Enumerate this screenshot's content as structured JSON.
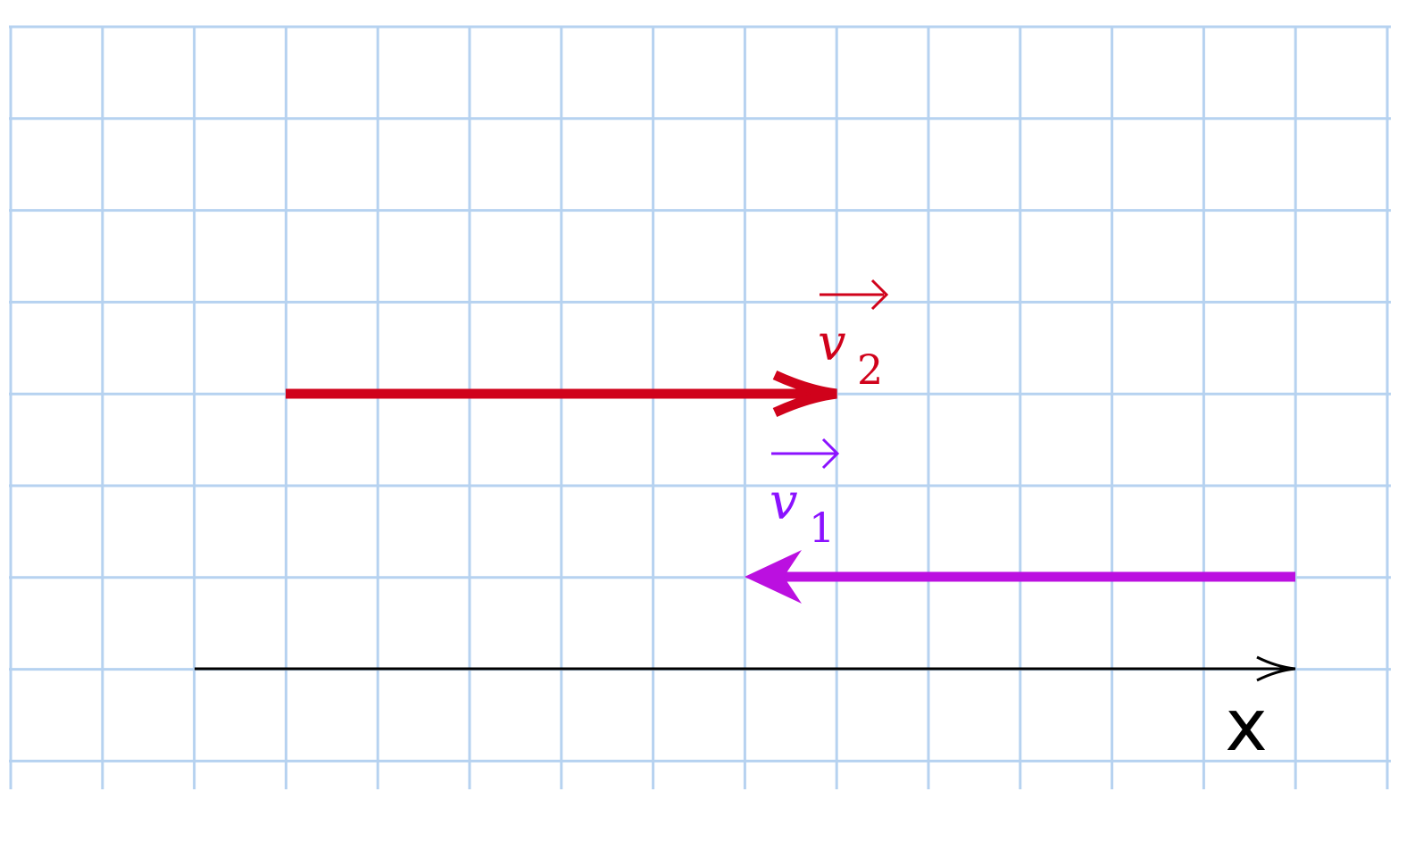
{
  "colors": {
    "grid": "#b6d2f0",
    "v2": "#d0021b",
    "v1_arrow": "#bb10e0",
    "v1_label": "#8b12ff",
    "axis": "#000000"
  },
  "vectors": [
    {
      "id": "v2",
      "symbol": "v",
      "subscript": "2",
      "direction": "right",
      "from_cell": 3,
      "to_cell": 9,
      "row": 4
    },
    {
      "id": "v1",
      "symbol": "v",
      "subscript": "1",
      "direction": "left",
      "from_cell": 14,
      "to_cell": 8,
      "row": 6
    }
  ],
  "axis": {
    "label": "x"
  }
}
